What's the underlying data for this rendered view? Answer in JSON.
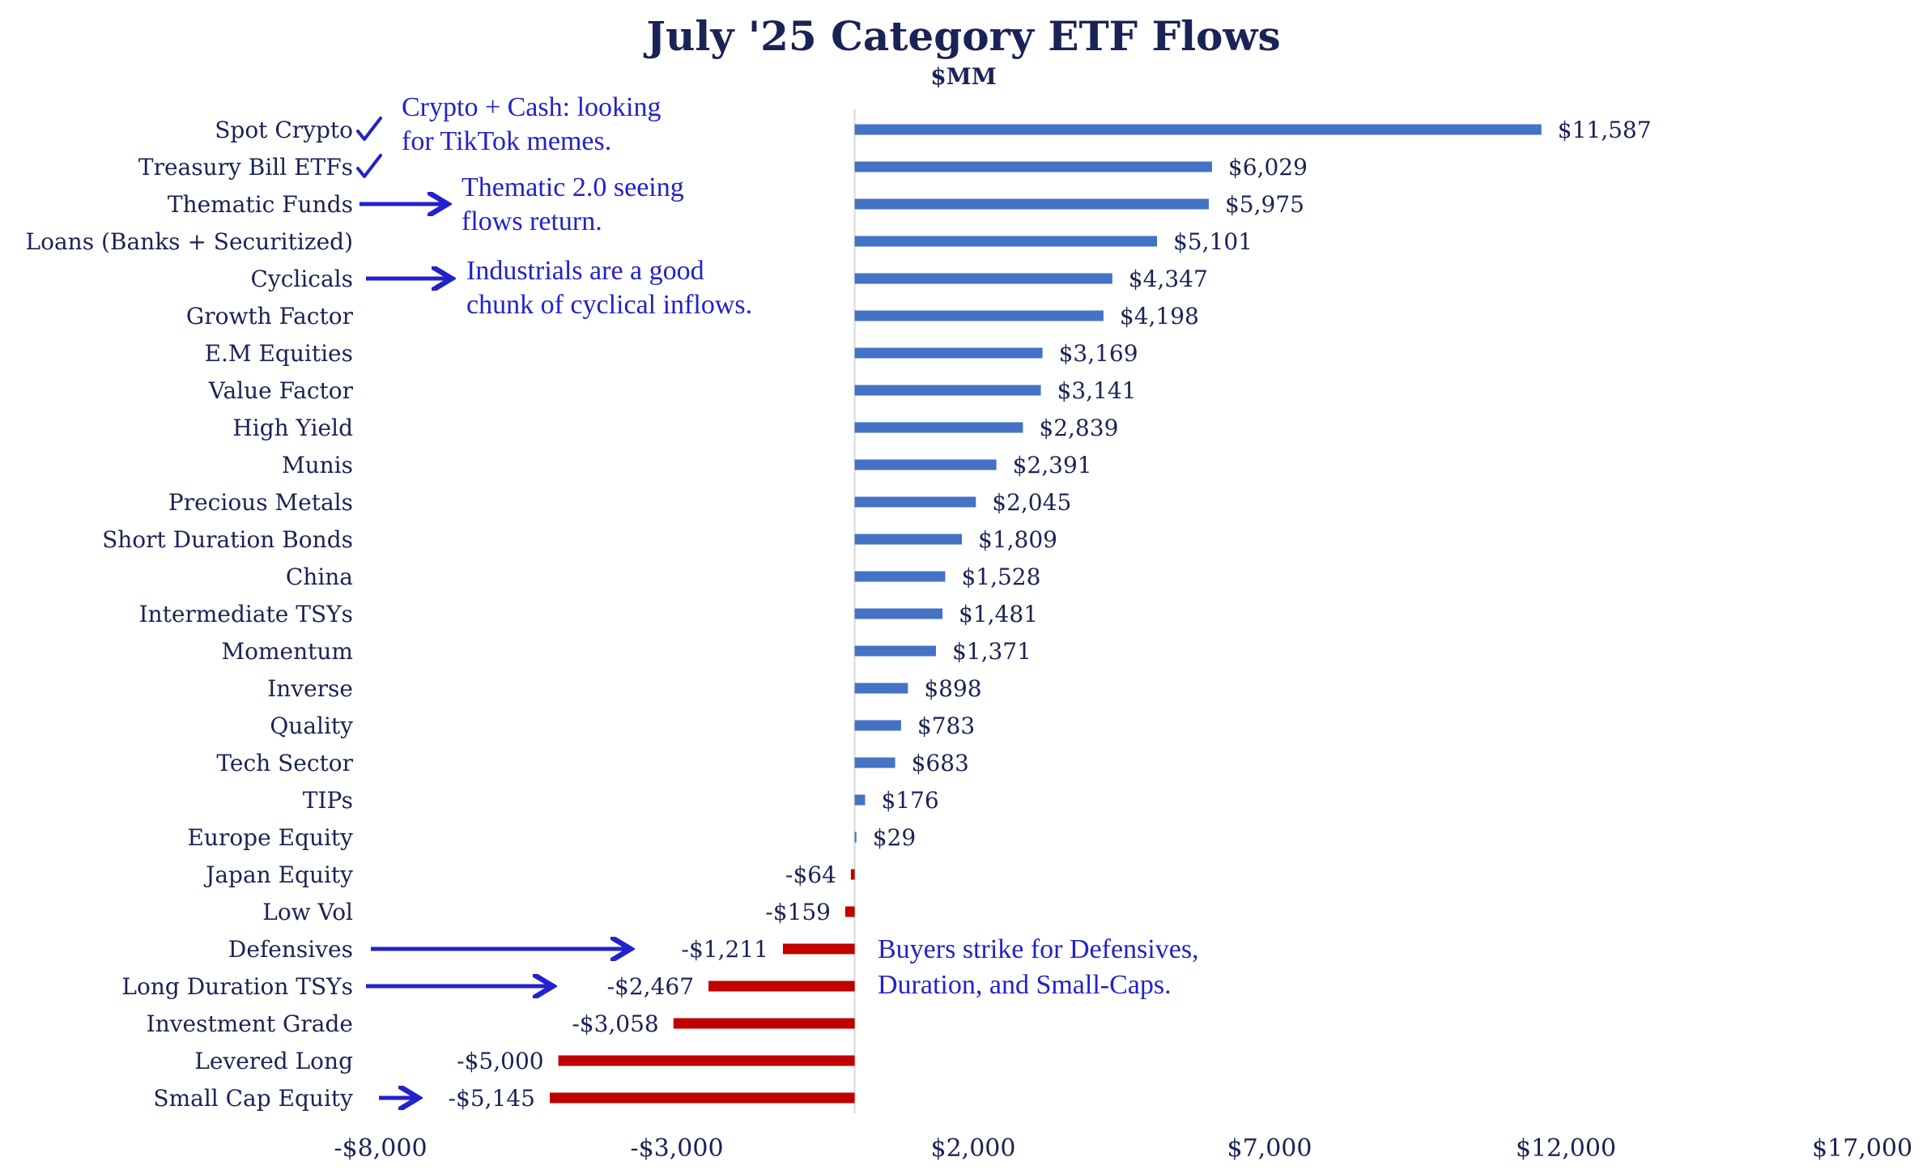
{
  "chart_data": {
    "type": "bar",
    "orientation": "horizontal",
    "title": "July '25 Category ETF Flows",
    "subtitle": "$MM",
    "xlim": [
      -8000,
      17000
    ],
    "ticks": [
      -8000,
      -3000,
      2000,
      7000,
      12000,
      17000
    ],
    "tick_labels": [
      "-$8,000",
      "-$3,000",
      "$2,000",
      "$7,000",
      "$12,000",
      "$17,000"
    ],
    "categories": [
      "Spot Crypto",
      "Treasury Bill ETFs",
      "Thematic Funds",
      "Loans (Banks + Securitized)",
      "Cyclicals",
      "Growth Factor",
      "E.M Equities",
      "Value Factor",
      "High Yield",
      "Munis",
      "Precious Metals",
      "Short Duration Bonds",
      "China",
      "Intermediate TSYs",
      "Momentum",
      "Inverse",
      "Quality",
      "Tech Sector",
      "TIPs",
      "Europe Equity",
      "Japan Equity",
      "Low Vol",
      "Defensives",
      "Long Duration TSYs",
      "Investment Grade",
      "Levered Long",
      "Small Cap Equity"
    ],
    "values": [
      11587,
      6029,
      5975,
      5101,
      4347,
      4198,
      3169,
      3141,
      2839,
      2391,
      2045,
      1809,
      1528,
      1481,
      1371,
      898,
      783,
      683,
      176,
      29,
      -64,
      -159,
      -1211,
      -2467,
      -3058,
      -5000,
      -5145
    ],
    "value_labels": [
      "$11,587",
      "$6,029",
      "$5,975",
      "$5,101",
      "$4,347",
      "$4,198",
      "$3,169",
      "$3,141",
      "$2,839",
      "$2,391",
      "$2,045",
      "$1,809",
      "$1,528",
      "$1,481",
      "$1,371",
      "$898",
      "$783",
      "$683",
      "$176",
      "$29",
      "-$64",
      "-$159",
      "-$1,211",
      "-$2,467",
      "-$3,058",
      "-$5,000",
      "-$5,145"
    ],
    "colors": {
      "positive": "#4472c4",
      "negative": "#c00000",
      "text": "#1a2356",
      "annotation": "#2222cc",
      "axis": "#d9d9d9"
    },
    "annotations": [
      {
        "text": [
          "Crypto + Cash: looking",
          "for TikTok memes."
        ],
        "marker": "check",
        "targets": [
          "Spot Crypto",
          "Treasury Bill ETFs"
        ]
      },
      {
        "text": [
          "Thematic 2.0 seeing",
          "flows return."
        ],
        "marker": "arrow",
        "targets": [
          "Thematic Funds"
        ]
      },
      {
        "text": [
          "Industrials are a good",
          "chunk of cyclical inflows."
        ],
        "marker": "arrow",
        "targets": [
          "Cyclicals"
        ]
      },
      {
        "text": [
          "Buyers strike for Defensives,",
          "Duration, and Small-Caps."
        ],
        "marker": "arrow",
        "targets": [
          "Defensives",
          "Long Duration TSYs",
          "Small Cap Equity"
        ]
      }
    ]
  }
}
